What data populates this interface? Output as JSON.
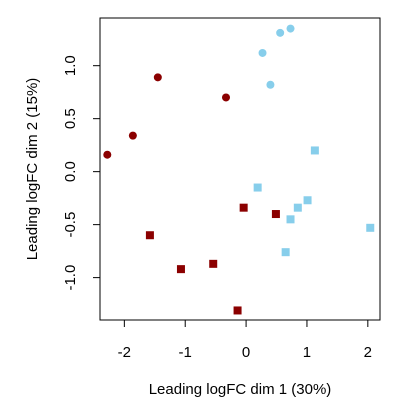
{
  "chart_data": {
    "type": "scatter",
    "title": "",
    "xlabel": "Leading logFC dim 1 (30%)",
    "ylabel": "Leading logFC dim 2 (15%)",
    "xlim": [
      -2.4,
      2.2
    ],
    "ylim": [
      -1.4,
      1.45
    ],
    "x_ticks": [
      -2,
      -1,
      0,
      1,
      2
    ],
    "y_ticks": [
      -1.0,
      -0.5,
      0.0,
      0.5,
      1.0
    ],
    "x_tick_labels": [
      "-2",
      "-1",
      "0",
      "1",
      "2"
    ],
    "y_tick_labels": [
      "-1.0",
      "-0.5",
      "0.0",
      "0.5",
      "1.0"
    ],
    "grid": false,
    "legend": "none",
    "series": [
      {
        "marker": "circle",
        "color": "#8B0000",
        "points": [
          {
            "x": -2.28,
            "y": 0.16
          },
          {
            "x": -1.86,
            "y": 0.34
          },
          {
            "x": -1.45,
            "y": 0.89
          },
          {
            "x": -0.33,
            "y": 0.7
          }
        ]
      },
      {
        "marker": "square",
        "color": "#8B0000",
        "points": [
          {
            "x": -1.58,
            "y": -0.6
          },
          {
            "x": -1.07,
            "y": -0.92
          },
          {
            "x": -0.54,
            "y": -0.87
          },
          {
            "x": -0.14,
            "y": -1.31
          },
          {
            "x": -0.04,
            "y": -0.34
          },
          {
            "x": 0.49,
            "y": -0.4
          }
        ]
      },
      {
        "marker": "circle",
        "color": "#87CEEB",
        "points": [
          {
            "x": 0.27,
            "y": 1.12
          },
          {
            "x": 0.56,
            "y": 1.31
          },
          {
            "x": 0.73,
            "y": 1.35
          },
          {
            "x": 0.4,
            "y": 0.82
          }
        ]
      },
      {
        "marker": "square",
        "color": "#87CEEB",
        "points": [
          {
            "x": 1.13,
            "y": 0.2
          },
          {
            "x": 0.19,
            "y": -0.15
          },
          {
            "x": 1.01,
            "y": -0.27
          },
          {
            "x": 0.85,
            "y": -0.34
          },
          {
            "x": 0.73,
            "y": -0.45
          },
          {
            "x": 2.04,
            "y": -0.53
          },
          {
            "x": 0.65,
            "y": -0.76
          }
        ]
      }
    ]
  }
}
